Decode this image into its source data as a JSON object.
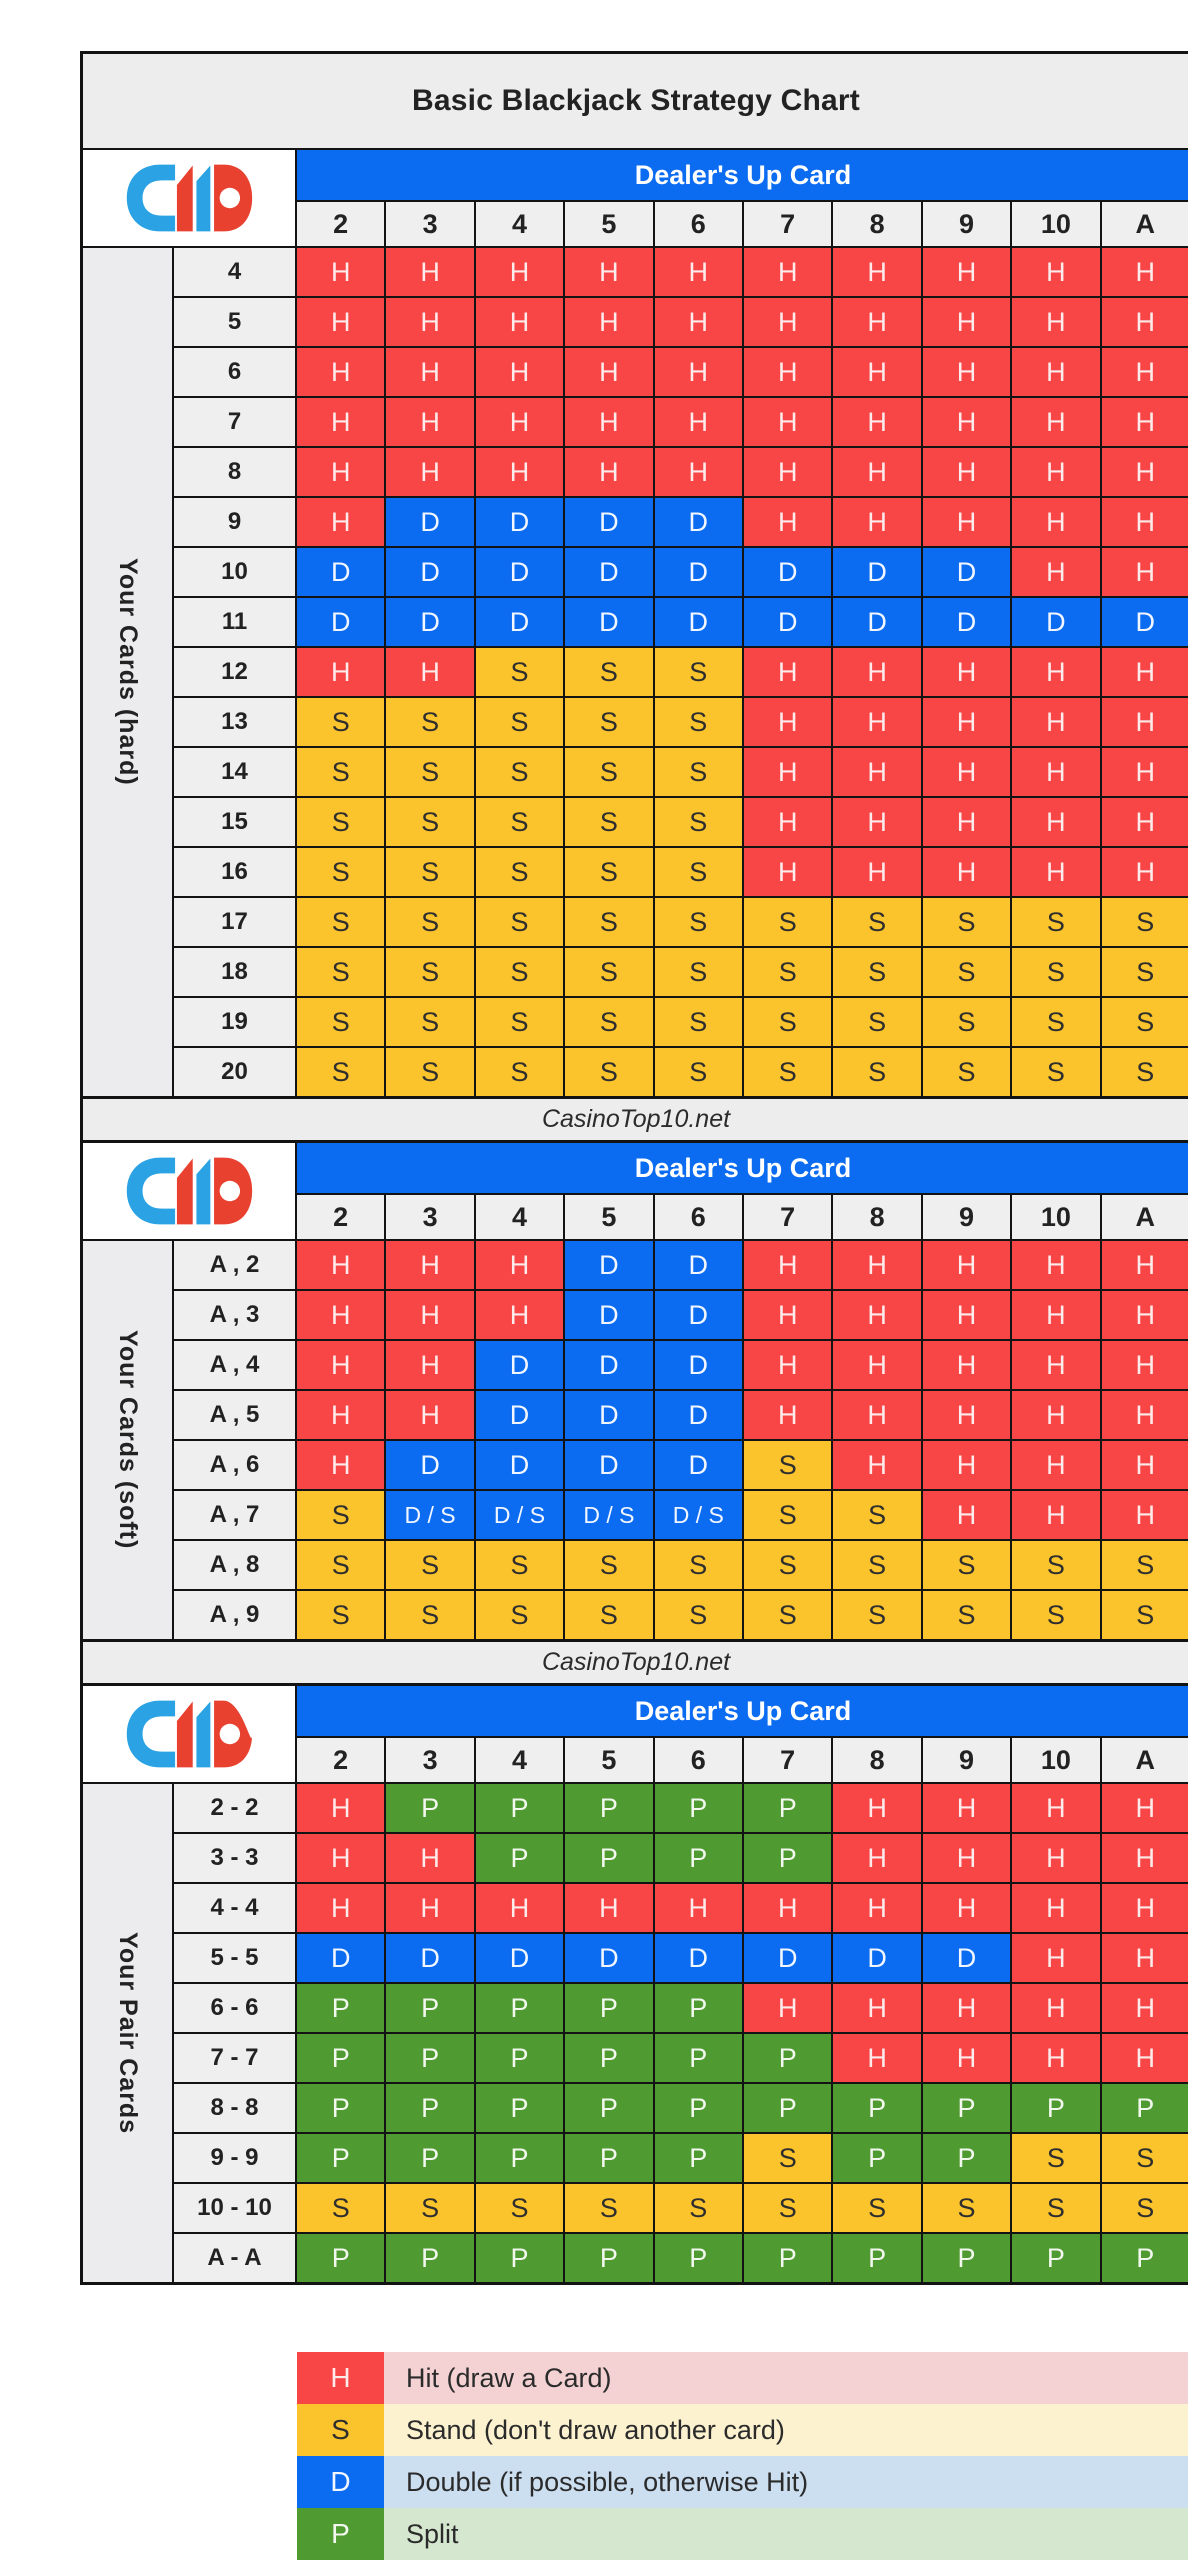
{
  "title": "Basic Blackjack Strategy Chart",
  "watermark": "CasinoTop10.net",
  "dealer": {
    "header_label": "Dealer's Up Card",
    "cards": [
      "2",
      "3",
      "4",
      "5",
      "6",
      "7",
      "8",
      "9",
      "10",
      "A"
    ]
  },
  "sections": [
    {
      "label": "Your Cards (hard)",
      "rows": [
        {
          "label": "4",
          "cells": [
            "H",
            "H",
            "H",
            "H",
            "H",
            "H",
            "H",
            "H",
            "H",
            "H"
          ]
        },
        {
          "label": "5",
          "cells": [
            "H",
            "H",
            "H",
            "H",
            "H",
            "H",
            "H",
            "H",
            "H",
            "H"
          ]
        },
        {
          "label": "6",
          "cells": [
            "H",
            "H",
            "H",
            "H",
            "H",
            "H",
            "H",
            "H",
            "H",
            "H"
          ]
        },
        {
          "label": "7",
          "cells": [
            "H",
            "H",
            "H",
            "H",
            "H",
            "H",
            "H",
            "H",
            "H",
            "H"
          ]
        },
        {
          "label": "8",
          "cells": [
            "H",
            "H",
            "H",
            "H",
            "H",
            "H",
            "H",
            "H",
            "H",
            "H"
          ]
        },
        {
          "label": "9",
          "cells": [
            "H",
            "D",
            "D",
            "D",
            "D",
            "H",
            "H",
            "H",
            "H",
            "H"
          ]
        },
        {
          "label": "10",
          "cells": [
            "D",
            "D",
            "D",
            "D",
            "D",
            "D",
            "D",
            "D",
            "H",
            "H"
          ]
        },
        {
          "label": "11",
          "cells": [
            "D",
            "D",
            "D",
            "D",
            "D",
            "D",
            "D",
            "D",
            "D",
            "D"
          ]
        },
        {
          "label": "12",
          "cells": [
            "H",
            "H",
            "S",
            "S",
            "S",
            "H",
            "H",
            "H",
            "H",
            "H"
          ]
        },
        {
          "label": "13",
          "cells": [
            "S",
            "S",
            "S",
            "S",
            "S",
            "H",
            "H",
            "H",
            "H",
            "H"
          ]
        },
        {
          "label": "14",
          "cells": [
            "S",
            "S",
            "S",
            "S",
            "S",
            "H",
            "H",
            "H",
            "H",
            "H"
          ]
        },
        {
          "label": "15",
          "cells": [
            "S",
            "S",
            "S",
            "S",
            "S",
            "H",
            "H",
            "H",
            "H",
            "H"
          ]
        },
        {
          "label": "16",
          "cells": [
            "S",
            "S",
            "S",
            "S",
            "S",
            "H",
            "H",
            "H",
            "H",
            "H"
          ]
        },
        {
          "label": "17",
          "cells": [
            "S",
            "S",
            "S",
            "S",
            "S",
            "S",
            "S",
            "S",
            "S",
            "S"
          ]
        },
        {
          "label": "18",
          "cells": [
            "S",
            "S",
            "S",
            "S",
            "S",
            "S",
            "S",
            "S",
            "S",
            "S"
          ]
        },
        {
          "label": "19",
          "cells": [
            "S",
            "S",
            "S",
            "S",
            "S",
            "S",
            "S",
            "S",
            "S",
            "S"
          ]
        },
        {
          "label": "20",
          "cells": [
            "S",
            "S",
            "S",
            "S",
            "S",
            "S",
            "S",
            "S",
            "S",
            "S"
          ]
        }
      ]
    },
    {
      "label": "Your Cards (soft)",
      "rows": [
        {
          "label": "A , 2",
          "cells": [
            "H",
            "H",
            "H",
            "D",
            "D",
            "H",
            "H",
            "H",
            "H",
            "H"
          ]
        },
        {
          "label": "A , 3",
          "cells": [
            "H",
            "H",
            "H",
            "D",
            "D",
            "H",
            "H",
            "H",
            "H",
            "H"
          ]
        },
        {
          "label": "A , 4",
          "cells": [
            "H",
            "H",
            "D",
            "D",
            "D",
            "H",
            "H",
            "H",
            "H",
            "H"
          ]
        },
        {
          "label": "A , 5",
          "cells": [
            "H",
            "H",
            "D",
            "D",
            "D",
            "H",
            "H",
            "H",
            "H",
            "H"
          ]
        },
        {
          "label": "A , 6",
          "cells": [
            "H",
            "D",
            "D",
            "D",
            "D",
            "S",
            "H",
            "H",
            "H",
            "H"
          ]
        },
        {
          "label": "A , 7",
          "cells": [
            "S",
            "D / S",
            "D / S",
            "D / S",
            "D / S",
            "S",
            "S",
            "H",
            "H",
            "H"
          ]
        },
        {
          "label": "A , 8",
          "cells": [
            "S",
            "S",
            "S",
            "S",
            "S",
            "S",
            "S",
            "S",
            "S",
            "S"
          ]
        },
        {
          "label": "A , 9",
          "cells": [
            "S",
            "S",
            "S",
            "S",
            "S",
            "S",
            "S",
            "S",
            "S",
            "S"
          ]
        }
      ]
    },
    {
      "label": "Your Pair Cards",
      "rows": [
        {
          "label": "2 - 2",
          "cells": [
            "H",
            "P",
            "P",
            "P",
            "P",
            "P",
            "H",
            "H",
            "H",
            "H"
          ]
        },
        {
          "label": "3 - 3",
          "cells": [
            "H",
            "H",
            "P",
            "P",
            "P",
            "P",
            "H",
            "H",
            "H",
            "H"
          ]
        },
        {
          "label": "4 - 4",
          "cells": [
            "H",
            "H",
            "H",
            "H",
            "H",
            "H",
            "H",
            "H",
            "H",
            "H"
          ]
        },
        {
          "label": "5 - 5",
          "cells": [
            "D",
            "D",
            "D",
            "D",
            "D",
            "D",
            "D",
            "D",
            "H",
            "H"
          ]
        },
        {
          "label": "6 - 6",
          "cells": [
            "P",
            "P",
            "P",
            "P",
            "P",
            "H",
            "H",
            "H",
            "H",
            "H"
          ]
        },
        {
          "label": "7 - 7",
          "cells": [
            "P",
            "P",
            "P",
            "P",
            "P",
            "P",
            "H",
            "H",
            "H",
            "H"
          ]
        },
        {
          "label": "8 - 8",
          "cells": [
            "P",
            "P",
            "P",
            "P",
            "P",
            "P",
            "P",
            "P",
            "P",
            "P"
          ]
        },
        {
          "label": "9 - 9",
          "cells": [
            "P",
            "P",
            "P",
            "P",
            "P",
            "S",
            "P",
            "P",
            "S",
            "S"
          ]
        },
        {
          "label": "10 - 10",
          "cells": [
            "S",
            "S",
            "S",
            "S",
            "S",
            "S",
            "S",
            "S",
            "S",
            "S"
          ]
        },
        {
          "label": "A - A",
          "cells": [
            "P",
            "P",
            "P",
            "P",
            "P",
            "P",
            "P",
            "P",
            "P",
            "P"
          ]
        }
      ]
    }
  ],
  "legend": [
    {
      "key": "H",
      "text": "Hit (draw a Card)"
    },
    {
      "key": "S",
      "text": "Stand (don't draw another card)"
    },
    {
      "key": "D",
      "text": "Double (if possible, otherwise Hit)"
    },
    {
      "key": "P",
      "text": "Split"
    }
  ],
  "colors": {
    "hit": "#f84545",
    "stand": "#fcc42c",
    "double": "#0b6cf1",
    "split": "#4f9a31",
    "header_blue": "#0b6cf1",
    "panel_gray": "#ededee",
    "cell_head_gray": "#efefef",
    "border": "#131313",
    "text_dark": "#2e2e2e",
    "legend_hit_bg": "#f4d2d3",
    "legend_stand_bg": "#fdf2cf",
    "legend_double_bg": "#ccdff1",
    "legend_split_bg": "#d5e8cf",
    "logo_blue": "#2aa2e3",
    "logo_red": "#e84130"
  },
  "chart_data": {
    "type": "heatmap",
    "title": "Basic Blackjack Strategy Chart",
    "x_axis_label": "Dealer's Up Card",
    "x_categories": [
      "2",
      "3",
      "4",
      "5",
      "6",
      "7",
      "8",
      "9",
      "10",
      "A"
    ],
    "legend_position": "bottom",
    "value_meaning": {
      "H": "Hit (draw a Card)",
      "S": "Stand (don't draw another card)",
      "D": "Double (if possible, otherwise Hit)",
      "P": "Split"
    },
    "series": [
      {
        "name": "Your Cards (hard)",
        "y_categories": [
          "4",
          "5",
          "6",
          "7",
          "8",
          "9",
          "10",
          "11",
          "12",
          "13",
          "14",
          "15",
          "16",
          "17",
          "18",
          "19",
          "20"
        ],
        "values": [
          [
            "H",
            "H",
            "H",
            "H",
            "H",
            "H",
            "H",
            "H",
            "H",
            "H"
          ],
          [
            "H",
            "H",
            "H",
            "H",
            "H",
            "H",
            "H",
            "H",
            "H",
            "H"
          ],
          [
            "H",
            "H",
            "H",
            "H",
            "H",
            "H",
            "H",
            "H",
            "H",
            "H"
          ],
          [
            "H",
            "H",
            "H",
            "H",
            "H",
            "H",
            "H",
            "H",
            "H",
            "H"
          ],
          [
            "H",
            "H",
            "H",
            "H",
            "H",
            "H",
            "H",
            "H",
            "H",
            "H"
          ],
          [
            "H",
            "D",
            "D",
            "D",
            "D",
            "H",
            "H",
            "H",
            "H",
            "H"
          ],
          [
            "D",
            "D",
            "D",
            "D",
            "D",
            "D",
            "D",
            "D",
            "H",
            "H"
          ],
          [
            "D",
            "D",
            "D",
            "D",
            "D",
            "D",
            "D",
            "D",
            "D",
            "D"
          ],
          [
            "H",
            "H",
            "S",
            "S",
            "S",
            "H",
            "H",
            "H",
            "H",
            "H"
          ],
          [
            "S",
            "S",
            "S",
            "S",
            "S",
            "H",
            "H",
            "H",
            "H",
            "H"
          ],
          [
            "S",
            "S",
            "S",
            "S",
            "S",
            "H",
            "H",
            "H",
            "H",
            "H"
          ],
          [
            "S",
            "S",
            "S",
            "S",
            "S",
            "H",
            "H",
            "H",
            "H",
            "H"
          ],
          [
            "S",
            "S",
            "S",
            "S",
            "S",
            "H",
            "H",
            "H",
            "H",
            "H"
          ],
          [
            "S",
            "S",
            "S",
            "S",
            "S",
            "S",
            "S",
            "S",
            "S",
            "S"
          ],
          [
            "S",
            "S",
            "S",
            "S",
            "S",
            "S",
            "S",
            "S",
            "S",
            "S"
          ],
          [
            "S",
            "S",
            "S",
            "S",
            "S",
            "S",
            "S",
            "S",
            "S",
            "S"
          ],
          [
            "S",
            "S",
            "S",
            "S",
            "S",
            "S",
            "S",
            "S",
            "S",
            "S"
          ]
        ]
      },
      {
        "name": "Your Cards (soft)",
        "y_categories": [
          "A , 2",
          "A , 3",
          "A , 4",
          "A , 5",
          "A , 6",
          "A , 7",
          "A , 8",
          "A , 9"
        ],
        "values": [
          [
            "H",
            "H",
            "H",
            "D",
            "D",
            "H",
            "H",
            "H",
            "H",
            "H"
          ],
          [
            "H",
            "H",
            "H",
            "D",
            "D",
            "H",
            "H",
            "H",
            "H",
            "H"
          ],
          [
            "H",
            "H",
            "D",
            "D",
            "D",
            "H",
            "H",
            "H",
            "H",
            "H"
          ],
          [
            "H",
            "H",
            "D",
            "D",
            "D",
            "H",
            "H",
            "H",
            "H",
            "H"
          ],
          [
            "H",
            "D",
            "D",
            "D",
            "D",
            "S",
            "H",
            "H",
            "H",
            "H"
          ],
          [
            "S",
            "D / S",
            "D / S",
            "D / S",
            "D / S",
            "S",
            "S",
            "H",
            "H",
            "H"
          ],
          [
            "S",
            "S",
            "S",
            "S",
            "S",
            "S",
            "S",
            "S",
            "S",
            "S"
          ],
          [
            "S",
            "S",
            "S",
            "S",
            "S",
            "S",
            "S",
            "S",
            "S",
            "S"
          ]
        ]
      },
      {
        "name": "Your Pair Cards",
        "y_categories": [
          "2 - 2",
          "3 - 3",
          "4 - 4",
          "5 - 5",
          "6 - 6",
          "7 - 7",
          "8 - 8",
          "9 - 9",
          "10 - 10",
          "A - A"
        ],
        "values": [
          [
            "H",
            "P",
            "P",
            "P",
            "P",
            "P",
            "H",
            "H",
            "H",
            "H"
          ],
          [
            "H",
            "H",
            "P",
            "P",
            "P",
            "P",
            "H",
            "H",
            "H",
            "H"
          ],
          [
            "H",
            "H",
            "H",
            "H",
            "H",
            "H",
            "H",
            "H",
            "H",
            "H"
          ],
          [
            "D",
            "D",
            "D",
            "D",
            "D",
            "D",
            "D",
            "D",
            "H",
            "H"
          ],
          [
            "P",
            "P",
            "P",
            "P",
            "P",
            "H",
            "H",
            "H",
            "H",
            "H"
          ],
          [
            "P",
            "P",
            "P",
            "P",
            "P",
            "P",
            "H",
            "H",
            "H",
            "H"
          ],
          [
            "P",
            "P",
            "P",
            "P",
            "P",
            "P",
            "P",
            "P",
            "P",
            "P"
          ],
          [
            "P",
            "P",
            "P",
            "P",
            "P",
            "S",
            "P",
            "P",
            "S",
            "S"
          ],
          [
            "S",
            "S",
            "S",
            "S",
            "S",
            "S",
            "S",
            "S",
            "S",
            "S"
          ],
          [
            "P",
            "P",
            "P",
            "P",
            "P",
            "P",
            "P",
            "P",
            "P",
            "P"
          ]
        ]
      }
    ]
  }
}
